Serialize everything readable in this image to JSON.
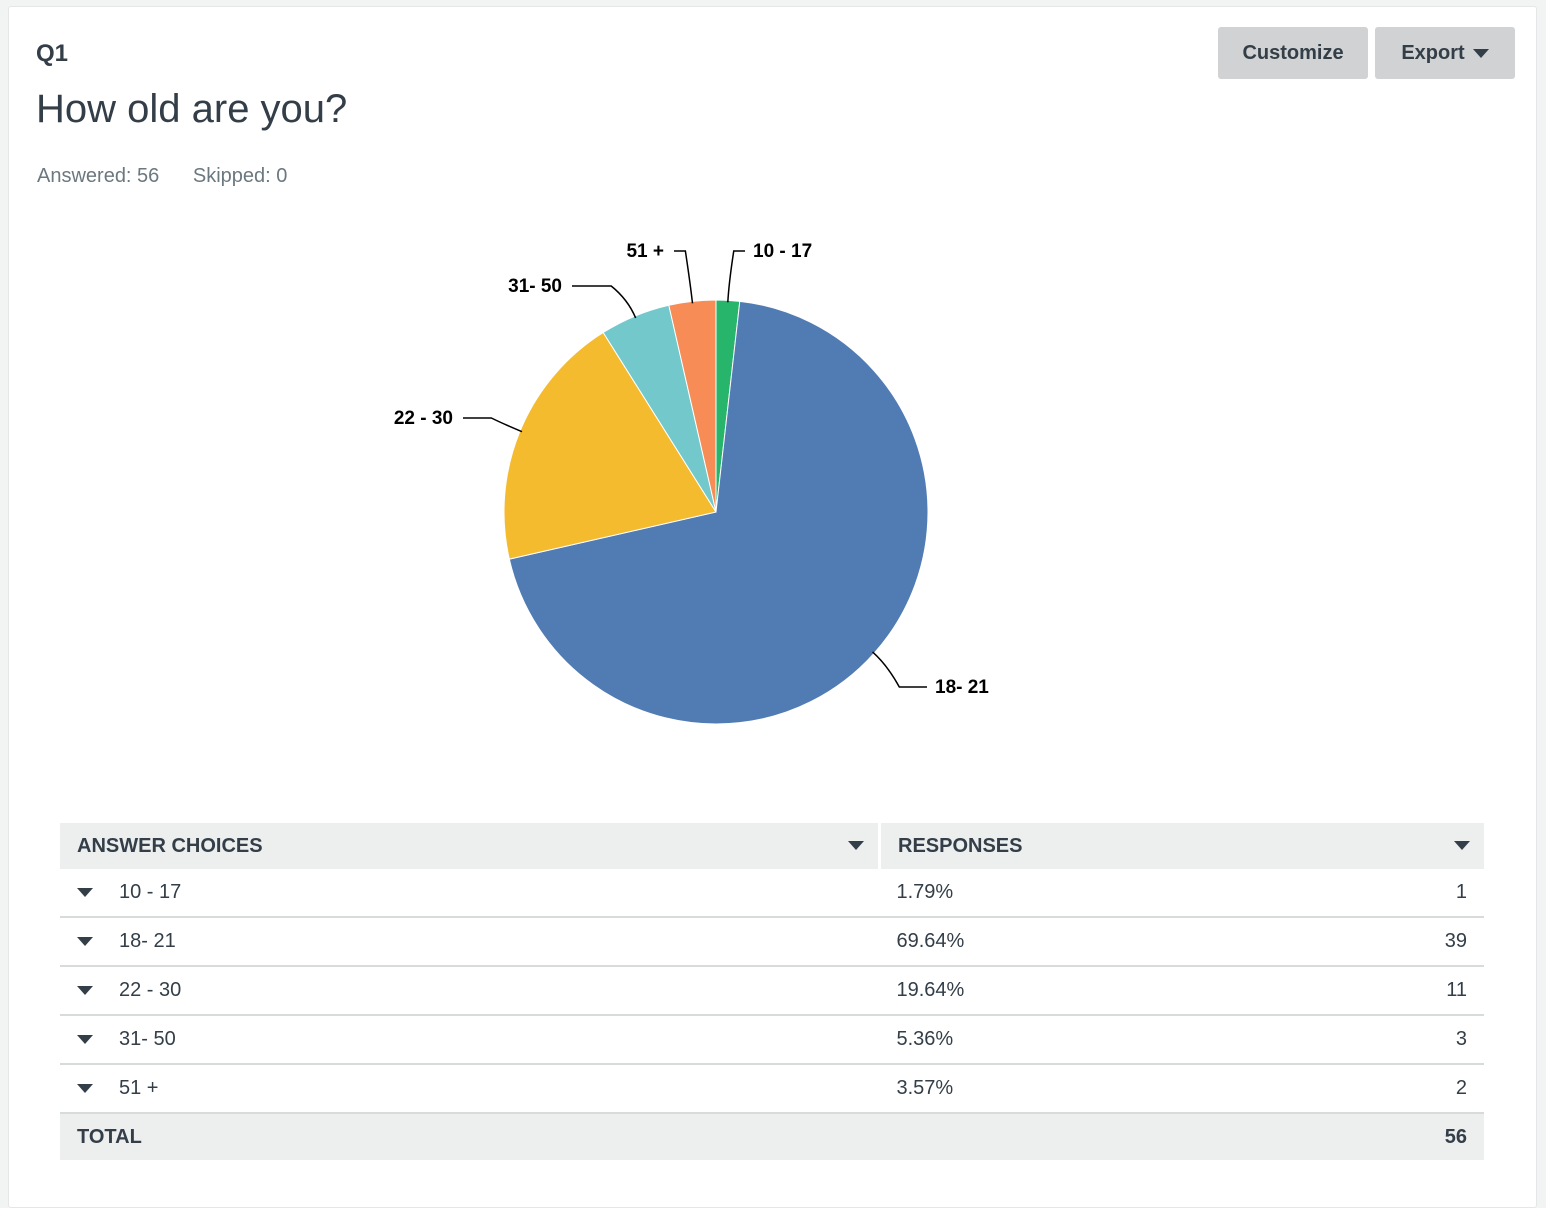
{
  "question": {
    "number": "Q1",
    "title": "How old are you?",
    "answered_label": "Answered: 56",
    "skipped_label": "Skipped: 0"
  },
  "toolbar": {
    "customize_label": "Customize",
    "export_label": "Export"
  },
  "chart_data": {
    "type": "pie",
    "title": "How old are you?",
    "categories": [
      "10 - 17",
      "18- 21",
      "22 - 30",
      "31- 50",
      "51 +"
    ],
    "values": [
      1.79,
      69.64,
      19.64,
      5.36,
      3.57
    ],
    "colors": [
      "#26b56b",
      "#517cb3",
      "#f5bb2e",
      "#73c8cc",
      "#f78c56"
    ],
    "start": "12 o'clock, clockwise"
  },
  "table": {
    "headers": [
      "ANSWER CHOICES",
      "RESPONSES"
    ],
    "rows": [
      {
        "choice": "10 - 17",
        "percent": "1.79%",
        "count": "1"
      },
      {
        "choice": "18- 21",
        "percent": "69.64%",
        "count": "39"
      },
      {
        "choice": "22 - 30",
        "percent": "19.64%",
        "count": "11"
      },
      {
        "choice": "31- 50",
        "percent": "5.36%",
        "count": "3"
      },
      {
        "choice": "51 +",
        "percent": "3.57%",
        "count": "2"
      }
    ],
    "total_label": "TOTAL",
    "total_value": "56"
  }
}
